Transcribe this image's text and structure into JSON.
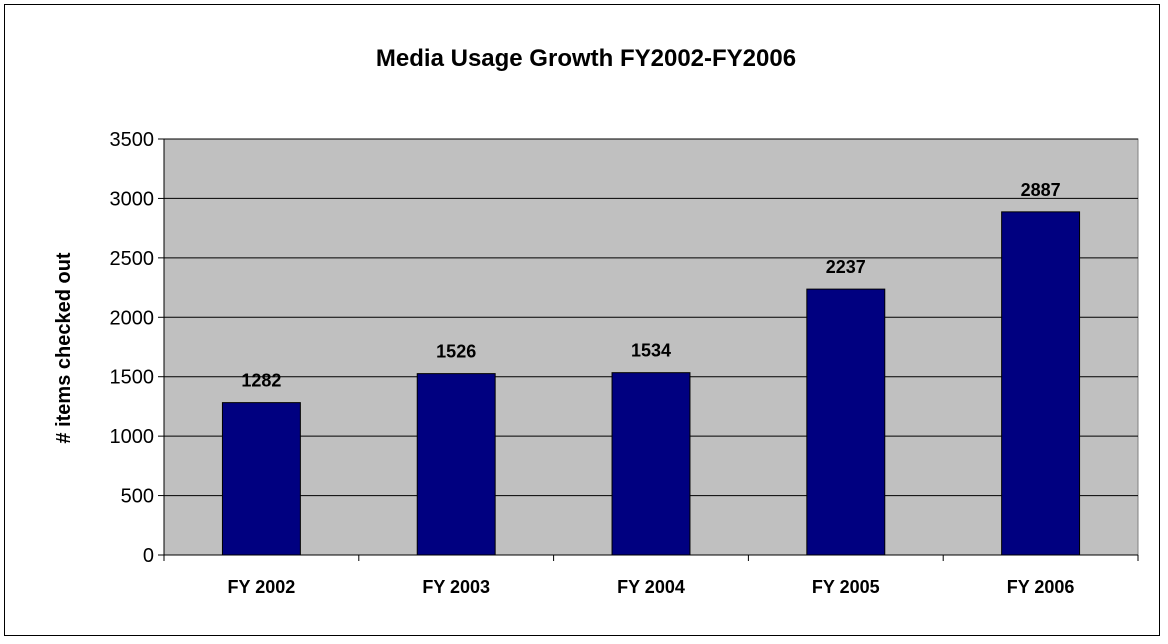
{
  "chart_data": {
    "type": "bar",
    "title": "Media Usage Growth FY2002-FY2006",
    "xlabel": "",
    "ylabel": "# items checked out",
    "categories": [
      "FY 2002",
      "FY 2003",
      "FY 2004",
      "FY 2005",
      "FY 2006"
    ],
    "values": [
      1282,
      1526,
      1534,
      2237,
      2887
    ],
    "data_labels": [
      "1282",
      "1526",
      "1534",
      "2237",
      "2887"
    ],
    "ylim": [
      0,
      3500
    ],
    "yticks": [
      "0",
      "500",
      "1000",
      "1500",
      "2000",
      "2500",
      "3000",
      "3500"
    ],
    "grid": true,
    "legend": "none",
    "colors": {
      "bar": "#000080",
      "plot_background": "#C0C0C0",
      "gridline": "#000000"
    }
  }
}
